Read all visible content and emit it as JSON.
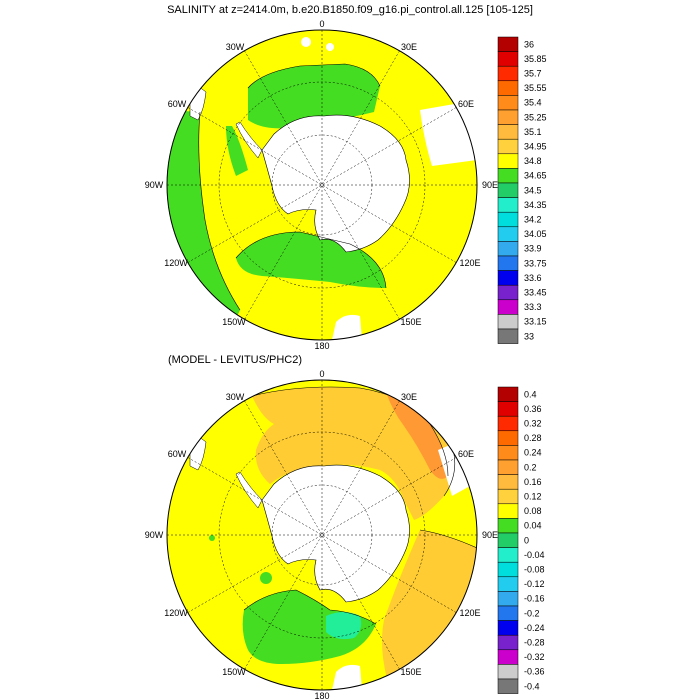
{
  "figure": {
    "top_title": "SALINITY at z=2414.0m, b.e20.B1850.f09_g16.pi_control.all.125 [105-125]",
    "bottom_title": "(MODEL - LEVITUS/PHC2)"
  },
  "longitude_labels": {
    "n0": "0",
    "n30e": "30E",
    "n60e": "60E",
    "n90e": "90E",
    "n120e": "120E",
    "n150e": "150E",
    "n180": "180",
    "n150w": "150W",
    "n120w": "120W",
    "n90w": "90W",
    "n60w": "60W",
    "n30w": "30W"
  },
  "top_colorbar": {
    "labels": [
      "36",
      "35.85",
      "35.7",
      "35.55",
      "35.4",
      "35.25",
      "35.1",
      "34.95",
      "34.8",
      "34.65",
      "34.5",
      "34.35",
      "34.2",
      "34.05",
      "33.9",
      "33.75",
      "33.6",
      "33.45",
      "33.3",
      "33.15",
      "33"
    ],
    "colors": [
      "#b30000",
      "#e00000",
      "#ff2a00",
      "#ff6a00",
      "#ff8c1a",
      "#ffa030",
      "#ffbb3d",
      "#ffd23d",
      "#ffff00",
      "#44dd22",
      "#22cc66",
      "#22eecc",
      "#00dddd",
      "#22ccee",
      "#33aaee",
      "#2277ee",
      "#0000ee",
      "#7722cc",
      "#cc00cc",
      "#cccccc",
      "#777777"
    ]
  },
  "bottom_colorbar": {
    "labels": [
      "0.4",
      "0.36",
      "0.32",
      "0.28",
      "0.24",
      "0.2",
      "0.16",
      "0.12",
      "0.08",
      "0.04",
      "0",
      "-0.04",
      "-0.08",
      "-0.12",
      "-0.16",
      "-0.2",
      "-0.24",
      "-0.28",
      "-0.32",
      "-0.36",
      "-0.4"
    ],
    "colors": [
      "#b30000",
      "#e00000",
      "#ff2a00",
      "#ff6a00",
      "#ff8c1a",
      "#ffa030",
      "#ffbb3d",
      "#ffd23d",
      "#ffff00",
      "#44dd22",
      "#22cc66",
      "#22eecc",
      "#00dddd",
      "#22ccee",
      "#33aaee",
      "#2277ee",
      "#0000ee",
      "#7722cc",
      "#cc00cc",
      "#cccccc",
      "#777777"
    ]
  },
  "map_colors": {
    "yellow": "#ffff00",
    "green": "#44dd22",
    "light_orange": "#ffcc33",
    "orange": "#ff9933",
    "mint": "#22ee99",
    "land": "#ffffff"
  }
}
